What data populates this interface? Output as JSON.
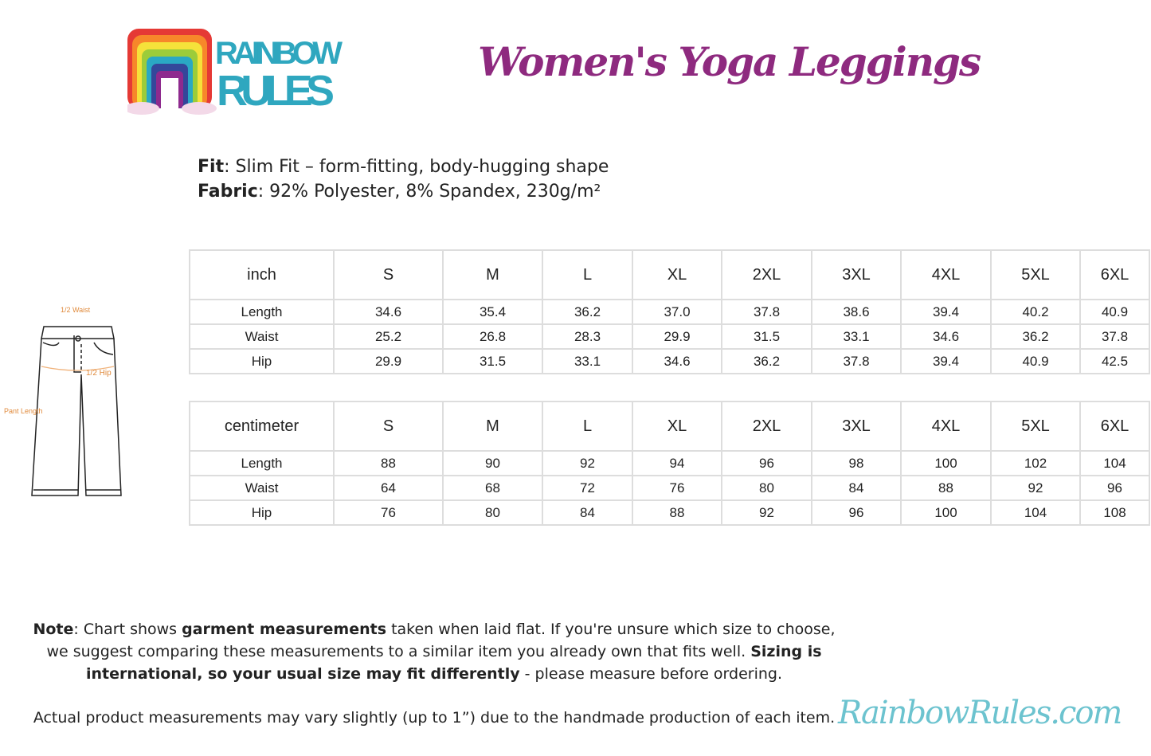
{
  "brand": {
    "logo_text": "RAINBOW RULES",
    "site": "RainbowRules.com",
    "accent": "#8e2a7f",
    "teal": "#2fa7bf"
  },
  "title": "Women's Yoga Leggings",
  "specs": {
    "fit_label": "Fit",
    "fit_value": ": Slim Fit – form-fitting, body-hugging shape",
    "fabric_label": "Fabric",
    "fabric_value": ": 92% Polyester, 8% Spandex, 230g/m²"
  },
  "diagram": {
    "waist": "1/2 Waist",
    "hip": "1/2 Hip",
    "length": "Pant Length"
  },
  "sizes": [
    "S",
    "M",
    "L",
    "XL",
    "2XL",
    "3XL",
    "4XL",
    "5XL",
    "6XL"
  ],
  "inch": {
    "unit": "inch",
    "rows": [
      {
        "label": "Length",
        "values": [
          "34.6",
          "35.4",
          "36.2",
          "37.0",
          "37.8",
          "38.6",
          "39.4",
          "40.2",
          "40.9"
        ]
      },
      {
        "label": "Waist",
        "values": [
          "25.2",
          "26.8",
          "28.3",
          "29.9",
          "31.5",
          "33.1",
          "34.6",
          "36.2",
          "37.8"
        ]
      },
      {
        "label": "Hip",
        "values": [
          "29.9",
          "31.5",
          "33.1",
          "34.6",
          "36.2",
          "37.8",
          "39.4",
          "40.9",
          "42.5"
        ]
      }
    ]
  },
  "cm": {
    "unit": "centimeter",
    "rows": [
      {
        "label": "Length",
        "values": [
          "88",
          "90",
          "92",
          "94",
          "96",
          "98",
          "100",
          "102",
          "104"
        ]
      },
      {
        "label": "Waist",
        "values": [
          "64",
          "68",
          "72",
          "76",
          "80",
          "84",
          "88",
          "92",
          "96"
        ]
      },
      {
        "label": "Hip",
        "values": [
          "76",
          "80",
          "84",
          "88",
          "92",
          "96",
          "100",
          "104",
          "108"
        ]
      }
    ]
  },
  "note": {
    "label": "Note",
    "p1": ": Chart shows ",
    "b1": "garment measurements",
    "p2": " taken when laid flat. If you're unsure which size to choose, we suggest comparing these measurements to a similar item you already own that fits well. ",
    "b2": "Sizing is international, so your usual size may fit differently",
    "p3": " - please measure before ordering.",
    "disclaimer": "Actual product measurements may vary slightly (up to 1”) due to the handmade production of each item."
  }
}
